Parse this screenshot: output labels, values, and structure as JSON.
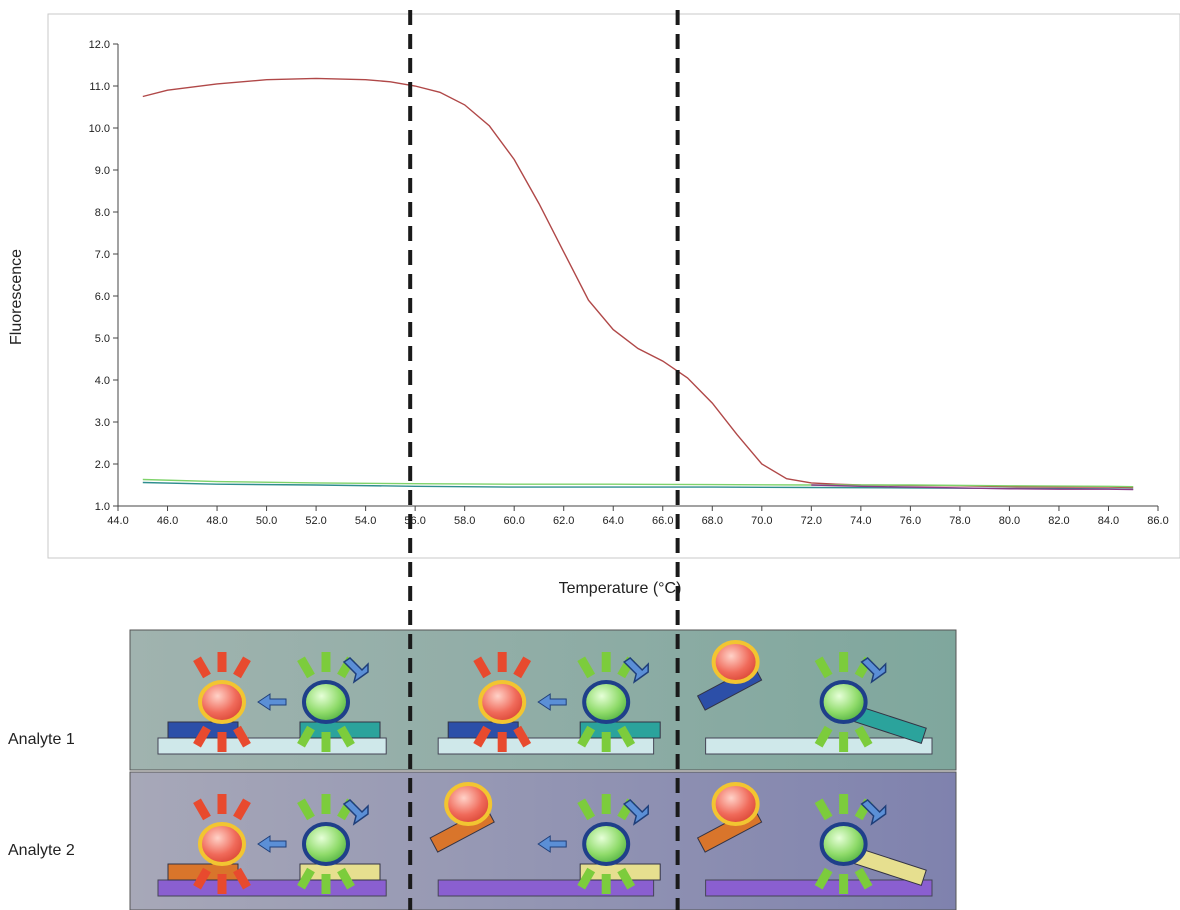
{
  "chart_data": {
    "type": "line",
    "xlabel": "Temperature (°C)",
    "ylabel": "Fluorescence",
    "xlim": [
      44,
      86
    ],
    "ylim": [
      1,
      12
    ],
    "x_ticks": [
      "44.0",
      "46.0",
      "48.0",
      "50.0",
      "52.0",
      "54.0",
      "56.0",
      "58.0",
      "60.0",
      "62.0",
      "64.0",
      "66.0",
      "68.0",
      "70.0",
      "72.0",
      "74.0",
      "76.0",
      "78.0",
      "80.0",
      "82.0",
      "84.0",
      "86.0"
    ],
    "y_ticks": [
      "1.0",
      "2.0",
      "3.0",
      "4.0",
      "5.0",
      "6.0",
      "7.0",
      "8.0",
      "9.0",
      "10.0",
      "11.0",
      "12.0"
    ],
    "grid": false,
    "reference_lines_x": [
      55.8,
      66.6
    ],
    "series": [
      {
        "color": "#b04848",
        "x": [
          45,
          46,
          48,
          50,
          52,
          54,
          55,
          56,
          57,
          58,
          59,
          60,
          61,
          62,
          63,
          64,
          65,
          66,
          67,
          68,
          69,
          70,
          71,
          72,
          73,
          74,
          76,
          78,
          80,
          82,
          84,
          85
        ],
        "y": [
          10.75,
          10.9,
          11.05,
          11.15,
          11.18,
          11.15,
          11.1,
          11.0,
          10.85,
          10.55,
          10.05,
          9.25,
          8.2,
          7.05,
          5.9,
          5.2,
          4.75,
          4.45,
          4.05,
          3.45,
          2.7,
          2.0,
          1.65,
          1.55,
          1.52,
          1.5,
          1.49,
          1.48,
          1.46,
          1.45,
          1.45,
          1.44
        ]
      },
      {
        "color": "#7fd36a",
        "x": [
          45,
          48,
          52,
          56,
          60,
          64,
          68,
          72,
          76,
          80,
          84,
          85
        ],
        "y": [
          1.63,
          1.58,
          1.55,
          1.53,
          1.52,
          1.52,
          1.51,
          1.5,
          1.5,
          1.48,
          1.47,
          1.46
        ]
      },
      {
        "color": "#2f8e8e",
        "x": [
          45,
          48,
          52,
          56,
          60,
          64,
          68,
          72,
          76,
          80,
          84,
          85
        ],
        "y": [
          1.56,
          1.52,
          1.5,
          1.47,
          1.45,
          1.45,
          1.45,
          1.44,
          1.43,
          1.42,
          1.41,
          1.4
        ]
      },
      {
        "color": "#8a3a8a",
        "x": [
          72,
          74,
          76,
          78,
          80,
          82,
          84,
          85
        ],
        "y": [
          1.5,
          1.47,
          1.45,
          1.43,
          1.41,
          1.4,
          1.4,
          1.39
        ]
      }
    ]
  },
  "labels": {
    "analyte1": "Analyte 1",
    "analyte2": "Analyte 2"
  },
  "colors": {
    "panel_row1": "#8fb1a8",
    "panel_row2": "#8f92b3",
    "donor_red": "#e84a2e",
    "acceptor_green": "#7ccc3c",
    "analyte1_probe": "#2c4fa8",
    "analyte1_partner": "#2ba39c",
    "analyte2_probe": "#d9752b",
    "analyte2_partner": "#e6df8f",
    "analyte1_strand": "#cfe8ea",
    "analyte2_strand": "#8a5fd0"
  }
}
